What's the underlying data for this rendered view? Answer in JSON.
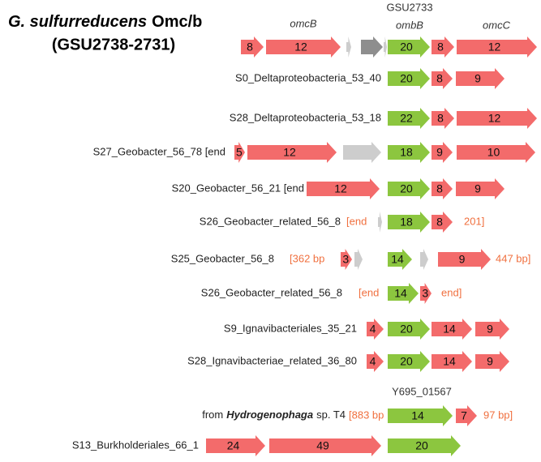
{
  "header": {
    "title_italic": "G. sulfurreducens",
    "title_rest": "Omc/b",
    "subtitle": "(GSU2738-2731)",
    "gene_labels": [
      "omcB",
      "GSU2733",
      "ombB",
      "omcC"
    ]
  },
  "rows": [
    {
      "items": [
        "8",
        "12",
        "20",
        "8",
        "12"
      ]
    },
    {
      "label": "S0_Deltaproteobacteria_53_40",
      "items": [
        "20",
        "8",
        "9"
      ]
    },
    {
      "label": "S28_Deltaproteobacteria_53_18",
      "items": [
        "22",
        "8",
        "12"
      ]
    },
    {
      "label": "S27_Geobacter_56_78  [end",
      "items": [
        "5",
        "12",
        "18",
        "9",
        "10"
      ]
    },
    {
      "label": "S20_Geobacter_56_21  [end",
      "items": [
        "12",
        "20",
        "8",
        "9"
      ]
    },
    {
      "label": "S26_Geobacter_related_56_8",
      "items": [
        "[end",
        "18",
        "8",
        "201]"
      ]
    },
    {
      "label": "S25_Geobacter_56_8",
      "items": [
        "[362 bp",
        "3",
        "14",
        "9",
        "447 bp]"
      ]
    },
    {
      "label": "S26_Geobacter_related_56_8",
      "items": [
        "[end",
        "14",
        "3",
        "end]"
      ]
    },
    {
      "label": "S9_Ignavibacteriales_35_21",
      "items": [
        "4",
        "20",
        "14",
        "9"
      ]
    },
    {
      "label": "S28_Ignavibacteriae_related_36_80",
      "items": [
        "4",
        "20",
        "14",
        "9"
      ]
    },
    {
      "label_prefix": "from",
      "label_italic": "Hydrogenophaga",
      "label_suffix": "sp. T4",
      "gene_label": "Y695_01567",
      "items": [
        "[883 bp",
        "14",
        "7",
        "97 bp]"
      ]
    },
    {
      "label": "S13_Burkholderiales_66_1",
      "items": [
        "24",
        "49",
        "20"
      ]
    }
  ]
}
